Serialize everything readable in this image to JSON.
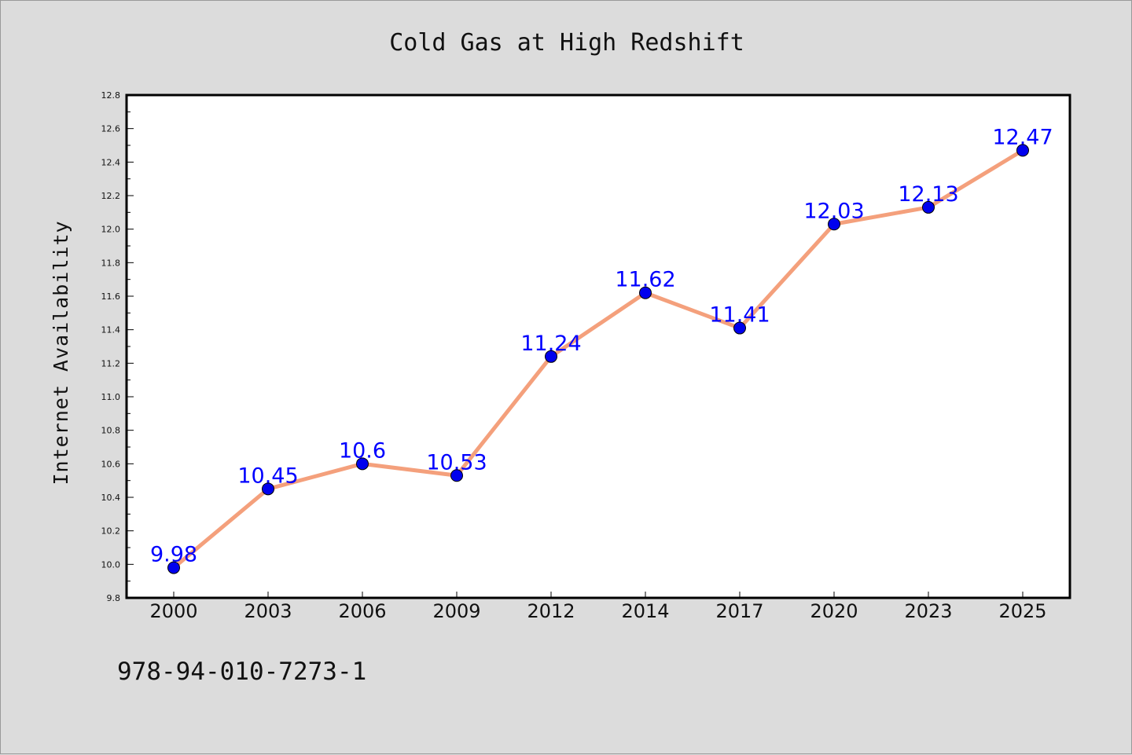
{
  "chart_data": {
    "type": "line",
    "title": "Cold Gas at High Redshift",
    "xlabel": "",
    "ylabel": "Internet Availability",
    "categories": [
      "2000",
      "2003",
      "2006",
      "2009",
      "2012",
      "2014",
      "2017",
      "2020",
      "2023",
      "2025"
    ],
    "series": [
      {
        "values": [
          9.98,
          10.45,
          10.6,
          10.53,
          11.24,
          11.62,
          11.41,
          12.03,
          12.13,
          12.47
        ],
        "data_labels": [
          "9.98",
          "10.45",
          "10.6",
          "10.53",
          "11.24",
          "11.62",
          "11.41",
          "12.03",
          "12.13",
          "12.47"
        ],
        "line_color": "#f4a07c",
        "marker_color": "#0000ee",
        "label_color": "#0000ff"
      }
    ],
    "ylim": [
      9.8,
      12.8
    ],
    "yticks": [
      "9.8",
      "10.0",
      "10.2",
      "10.4",
      "10.6",
      "10.8",
      "11.0",
      "11.2",
      "11.4",
      "11.6",
      "11.8",
      "12.0",
      "12.2",
      "12.4",
      "12.6",
      "12.8"
    ],
    "grid": false,
    "legend": "none"
  },
  "footer": {
    "text": "978-94-010-7273-1"
  },
  "colors": {
    "background": "#dcdcdc",
    "plot_background": "#ffffff",
    "axis": "#000000"
  }
}
